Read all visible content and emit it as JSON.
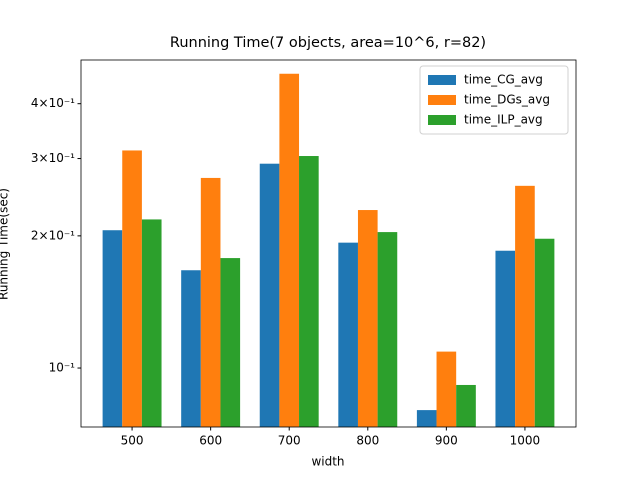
{
  "chart_data": {
    "type": "bar",
    "title": "Running Time(7 objects, area=10^6, r=82)",
    "x_label": "width",
    "y_label": "Running Time(sec)",
    "categories": [
      "500",
      "600",
      "700",
      "800",
      "900",
      "1000"
    ],
    "series": [
      {
        "name": "time_CG_avg",
        "color": "#1f77b4",
        "values": [
          0.206,
          0.167,
          0.292,
          0.193,
          0.0802,
          0.185
        ]
      },
      {
        "name": "time_DGs_avg",
        "color": "#ff7f0e",
        "values": [
          0.313,
          0.271,
          0.468,
          0.229,
          0.109,
          0.26
        ]
      },
      {
        "name": "time_ILP_avg",
        "color": "#2ca02c",
        "values": [
          0.218,
          0.178,
          0.304,
          0.204,
          0.0915,
          0.197
        ]
      }
    ],
    "log_scale": true,
    "ylim": [
      0.0734,
      0.503
    ],
    "yticks": [
      {
        "value": 0.1,
        "label": "10⁻¹"
      },
      {
        "value": 0.2,
        "label": "2×10⁻¹"
      },
      {
        "value": 0.3,
        "label": "3×10⁻¹"
      },
      {
        "value": 0.4,
        "label": "4×10⁻¹"
      }
    ],
    "legend": "upper right"
  }
}
